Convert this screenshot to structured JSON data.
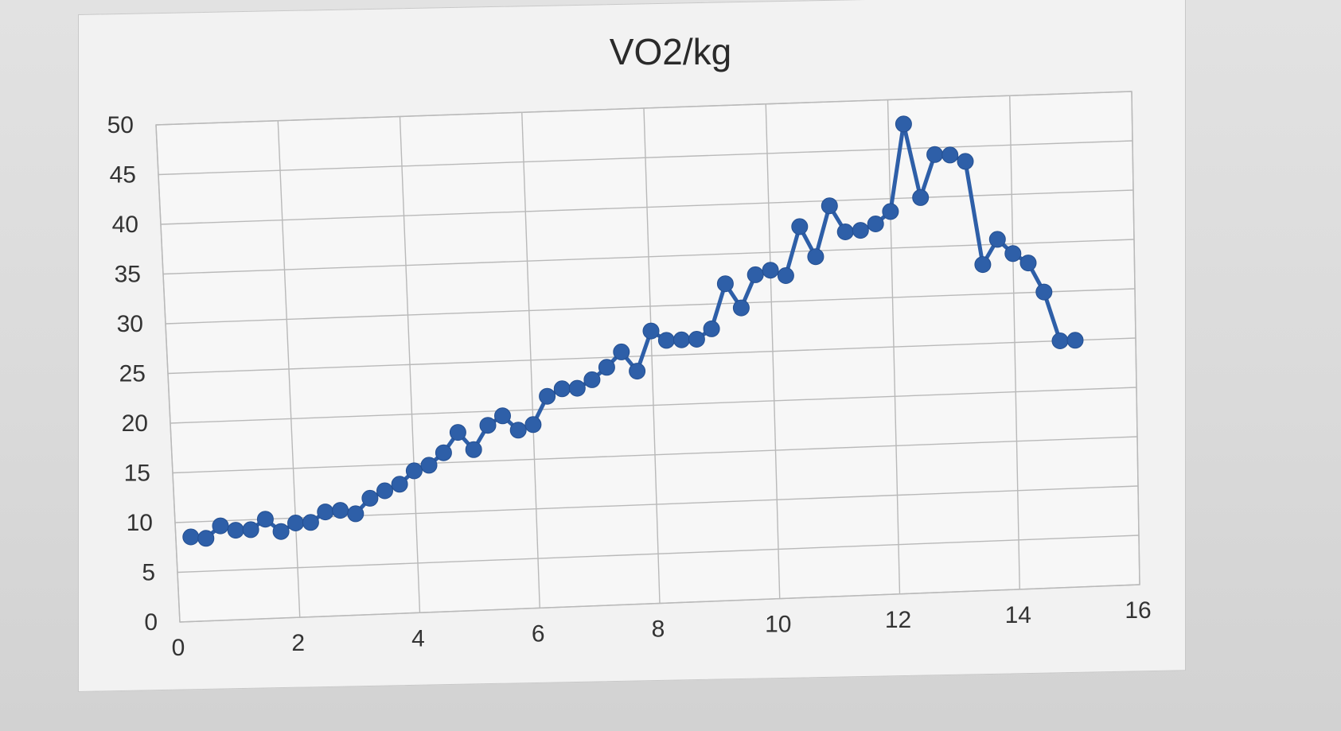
{
  "chart_data": {
    "type": "line",
    "title": "VO2/kg",
    "xlabel": "",
    "ylabel": "",
    "xlim": [
      0,
      16
    ],
    "ylim": [
      0,
      50
    ],
    "x_ticks": [
      "0",
      "2",
      "4",
      "6",
      "8",
      "10",
      "12",
      "14",
      "16"
    ],
    "y_ticks": [
      "0",
      "5",
      "10",
      "15",
      "20",
      "25",
      "30",
      "35",
      "40",
      "45",
      "50"
    ],
    "grid": true,
    "legend": "none",
    "marker": "circle",
    "series": [
      {
        "color": "#2e5fa8",
        "points": [
          [
            0.25,
            8.5
          ],
          [
            0.5,
            8.3
          ],
          [
            0.75,
            9.5
          ],
          [
            1.0,
            9.0
          ],
          [
            1.25,
            9.0
          ],
          [
            1.5,
            10.0
          ],
          [
            1.75,
            8.7
          ],
          [
            2.0,
            9.5
          ],
          [
            2.25,
            9.5
          ],
          [
            2.5,
            10.5
          ],
          [
            2.75,
            10.6
          ],
          [
            3.0,
            10.2
          ],
          [
            3.25,
            11.7
          ],
          [
            3.5,
            12.4
          ],
          [
            3.75,
            13.0
          ],
          [
            4.0,
            14.3
          ],
          [
            4.25,
            14.8
          ],
          [
            4.5,
            16.0
          ],
          [
            4.75,
            18.0
          ],
          [
            5.0,
            16.2
          ],
          [
            5.25,
            18.6
          ],
          [
            5.5,
            19.5
          ],
          [
            5.75,
            18.0
          ],
          [
            6.0,
            18.5
          ],
          [
            6.25,
            21.3
          ],
          [
            6.5,
            22.0
          ],
          [
            6.75,
            22.0
          ],
          [
            7.0,
            22.8
          ],
          [
            7.25,
            24.0
          ],
          [
            7.5,
            25.5
          ],
          [
            7.75,
            23.5
          ],
          [
            8.0,
            27.5
          ],
          [
            8.25,
            26.5
          ],
          [
            8.5,
            26.5
          ],
          [
            8.75,
            26.5
          ],
          [
            9.0,
            27.5
          ],
          [
            9.25,
            32.0
          ],
          [
            9.5,
            29.5
          ],
          [
            9.75,
            32.8
          ],
          [
            10.0,
            33.2
          ],
          [
            10.25,
            32.6
          ],
          [
            10.5,
            37.5
          ],
          [
            10.75,
            34.4
          ],
          [
            11.0,
            39.5
          ],
          [
            11.25,
            36.8
          ],
          [
            11.5,
            36.9
          ],
          [
            11.75,
            37.5
          ],
          [
            12.0,
            38.7
          ],
          [
            12.25,
            47.5
          ],
          [
            12.5,
            40.0
          ],
          [
            12.75,
            44.3
          ],
          [
            13.0,
            44.2
          ],
          [
            13.25,
            43.5
          ],
          [
            13.5,
            33.0
          ],
          [
            13.75,
            35.5
          ],
          [
            14.0,
            34.0
          ],
          [
            14.25,
            33.0
          ],
          [
            14.5,
            30.0
          ],
          [
            14.75,
            25.0
          ],
          [
            15.0,
            25.0
          ]
        ]
      }
    ]
  }
}
